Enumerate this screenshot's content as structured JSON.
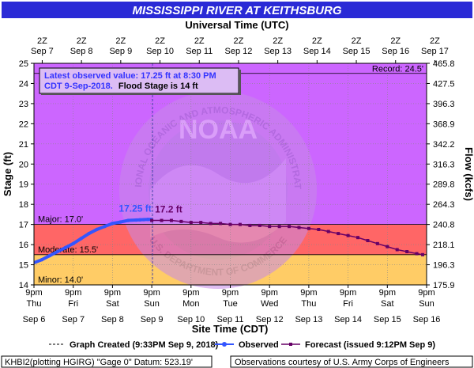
{
  "header": {
    "title": "MISSISSIPPI RIVER AT KEITHSBURG",
    "top_axis_label": "Universal Time (UTC)"
  },
  "top_ticks": [
    {
      "hour": "2Z",
      "date": "Sep 7"
    },
    {
      "hour": "2Z",
      "date": "Sep 8"
    },
    {
      "hour": "2Z",
      "date": "Sep 9"
    },
    {
      "hour": "2Z",
      "date": "Sep 10"
    },
    {
      "hour": "2Z",
      "date": "Sep 11"
    },
    {
      "hour": "2Z",
      "date": "Sep 12"
    },
    {
      "hour": "2Z",
      "date": "Sep 13"
    },
    {
      "hour": "2Z",
      "date": "Sep 14"
    },
    {
      "hour": "2Z",
      "date": "Sep 15"
    },
    {
      "hour": "2Z",
      "date": "Sep 16"
    },
    {
      "hour": "2Z",
      "date": "Sep 17"
    }
  ],
  "bottom_ticks": [
    {
      "time": "9pm",
      "day": "Thu",
      "date": "Sep 6"
    },
    {
      "time": "9pm",
      "day": "Fri",
      "date": "Sep 7"
    },
    {
      "time": "9pm",
      "day": "Sat",
      "date": "Sep 8"
    },
    {
      "time": "9pm",
      "day": "Sun",
      "date": "Sep 9"
    },
    {
      "time": "9pm",
      "day": "Mon",
      "date": "Sep 10"
    },
    {
      "time": "9pm",
      "day": "Tue",
      "date": "Sep 11"
    },
    {
      "time": "9pm",
      "day": "Wed",
      "date": "Sep 12"
    },
    {
      "time": "9pm",
      "day": "Thu",
      "date": "Sep 13"
    },
    {
      "time": "9pm",
      "day": "Fri",
      "date": "Sep 14"
    },
    {
      "time": "9pm",
      "day": "Sat",
      "date": "Sep 15"
    },
    {
      "time": "9pm",
      "day": "Sun",
      "date": "Sep 16"
    }
  ],
  "chart_data": {
    "type": "line",
    "title": "MISSISSIPPI RIVER AT KEITHSBURG",
    "xlabel": "Site Time (CDT)",
    "xlabel_top": "Universal Time (UTC)",
    "ylabel": "Stage (ft)",
    "ylabel_right": "Flow (kcfs)",
    "ylim": [
      14,
      25
    ],
    "y_ticks": [
      14,
      15,
      16,
      17,
      18,
      19,
      20,
      21,
      22,
      23,
      24,
      25
    ],
    "right_ticks": [
      "465.8",
      "427.5",
      "396.3",
      "368.9",
      "342.2",
      "316.3",
      "289.8",
      "264.3",
      "240.8",
      "218.1",
      "196.3",
      "175.9"
    ],
    "x_unit": "days after Sep 6 9pm CDT",
    "xlim": [
      0,
      10
    ],
    "grid": true,
    "flood_categories": [
      {
        "label": "Minor: 14.0'",
        "from": 14,
        "to": 15.5,
        "color": "#ffcc66"
      },
      {
        "label": "Moderate: 15.5'",
        "from": 15.5,
        "to": 17,
        "color": "#ff6666"
      },
      {
        "label": "Major: 17.0'",
        "from": 17,
        "to": 25,
        "color": "#cc66ff"
      }
    ],
    "record": {
      "label": "Record: 24.5'",
      "value": 24.5
    },
    "graph_created_x": 3.02,
    "series": [
      {
        "name": "Observed",
        "color": "#3355ff",
        "x": [
          0,
          0.2,
          0.4,
          0.6,
          0.8,
          1.0,
          1.2,
          1.4,
          1.6,
          1.8,
          2.0,
          2.2,
          2.4,
          2.6,
          2.7,
          2.8,
          2.9,
          2.98
        ],
        "y": [
          15.1,
          15.25,
          15.45,
          15.65,
          15.85,
          16.05,
          16.3,
          16.55,
          16.75,
          16.9,
          17.05,
          17.12,
          17.2,
          17.22,
          17.23,
          17.24,
          17.25,
          17.25
        ],
        "annotation": "17.25 ft"
      },
      {
        "name": "Forecast (issued 9:12PM Sep 9)",
        "color": "#660066",
        "x": [
          3.0,
          3.25,
          3.5,
          3.75,
          4.0,
          4.25,
          4.5,
          4.75,
          5.0,
          5.25,
          5.5,
          5.75,
          6.0,
          6.25,
          6.5,
          6.75,
          7.0,
          7.25,
          7.5,
          7.75,
          8.0,
          8.25,
          8.5,
          8.75,
          9.0,
          9.25,
          9.5,
          9.75,
          9.9
        ],
        "y": [
          17.2,
          17.2,
          17.2,
          17.15,
          17.1,
          17.1,
          17.05,
          17.05,
          17.0,
          17.0,
          16.95,
          16.95,
          16.9,
          16.9,
          16.9,
          16.85,
          16.8,
          16.75,
          16.65,
          16.55,
          16.45,
          16.35,
          16.2,
          16.05,
          15.9,
          15.75,
          15.65,
          15.55,
          15.5
        ],
        "annotation": "17.2 ft"
      }
    ]
  },
  "info_box": {
    "line1": "Latest observed value: 17.25 ft at 8:30 PM",
    "line2_date": "CDT 9-Sep-2018.",
    "line2_flood": "Flood Stage is 14 ft"
  },
  "legend": {
    "created": "Graph Created (9:33PM Sep 9, 2018)",
    "observed": "Observed",
    "forecast": "Forecast (issued 9:12PM Sep 9)"
  },
  "footer": {
    "datum": "KHBI2(plotting HGIRG) \"Gage 0\" Datum:  523.19'",
    "courtesy": "Observations courtesy of U.S. Army Corps of Engineers"
  },
  "watermark": {
    "text_top": "NATIONAL OCEANIC AND ATMOSPHERIC ADMINISTRATION",
    "text_bottom": "U.S. DEPARTMENT OF COMMERCE",
    "center": "NOAA"
  },
  "colors": {
    "title_bg": "#2a2ad6",
    "observed": "#3355ff",
    "forecast": "#660066",
    "major": "#cc66ff",
    "moderate": "#ff6666",
    "minor": "#ffcc66"
  }
}
